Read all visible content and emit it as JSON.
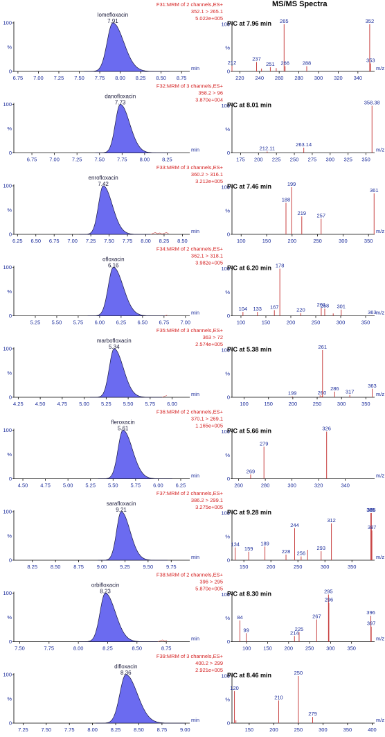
{
  "header": {
    "ms_title": "MS/MS Spectra"
  },
  "colors": {
    "peak_fill": "#6b6bf0",
    "peak_line": "#1a1a40",
    "info_text": "#d42020",
    "tick_text": "#1a2b9a",
    "spectrum_line": "#c84040"
  },
  "chart_data": [
    {
      "type": "area",
      "name": "lomefloxacin-chromatogram",
      "info": {
        "line1": "F31:MRM of 2 channels,ES+",
        "line2": "352.1 > 265.1",
        "line3": "5.022e+005"
      },
      "peak": {
        "label": "lomefloxacin",
        "rt_label": "7.91",
        "rt": 7.91,
        "width": 0.07
      },
      "xlim": [
        6.7,
        8.85
      ],
      "xticks": [
        "6.75",
        "7.00",
        "7.25",
        "7.50",
        "7.75",
        "8.00",
        "8.25",
        "8.50",
        "8.75"
      ],
      "yticks": [
        "100",
        "%",
        "0"
      ],
      "xlabel": "min"
    },
    {
      "type": "bar",
      "name": "lomefloxacin-spectrum",
      "title": "PIC at 7.96 min",
      "xlim": [
        212,
        357
      ],
      "xticks": [
        "220",
        "240",
        "260",
        "280",
        "300",
        "320",
        "340"
      ],
      "yticks": [
        "100",
        "%",
        "0"
      ],
      "xlabel": "m/z",
      "peaks": [
        {
          "mz": 212,
          "i": 12,
          "label": "212"
        },
        {
          "mz": 237,
          "i": 20,
          "label": "237"
        },
        {
          "mz": 242,
          "i": 6,
          "label": ""
        },
        {
          "mz": 251,
          "i": 9,
          "label": "251"
        },
        {
          "mz": 257,
          "i": 7,
          "label": ""
        },
        {
          "mz": 265,
          "i": 100,
          "label": "265"
        },
        {
          "mz": 266,
          "i": 11,
          "label": "266"
        },
        {
          "mz": 288,
          "i": 11,
          "label": "288"
        },
        {
          "mz": 352,
          "i": 100,
          "label": "352"
        },
        {
          "mz": 353,
          "i": 17,
          "label": "353"
        }
      ]
    },
    {
      "type": "area",
      "name": "danofloxacin-chromatogram",
      "info": {
        "line1": "F32:MRM of 3 channels,ES+",
        "line2": "358.2 > 96",
        "line3": "3.870e+004"
      },
      "peak": {
        "label": "danofloxacin",
        "rt_label": "7.73",
        "rt": 7.73,
        "width": 0.055
      },
      "xlim": [
        6.55,
        8.5
      ],
      "xticks": [
        "6.75",
        "7.00",
        "7.25",
        "7.50",
        "7.75",
        "8.00",
        "8.25"
      ],
      "yticks": [
        "100",
        "%",
        "0"
      ],
      "xlabel": "min"
    },
    {
      "type": "bar",
      "name": "danofloxacin-spectrum",
      "title": "PIC at 8.01  min",
      "xlim": [
        163,
        362
      ],
      "xticks": [
        "175",
        "200",
        "225",
        "250",
        "275",
        "300",
        "325",
        "350"
      ],
      "yticks": [
        "100",
        "%",
        "0"
      ],
      "xlabel": "m/z",
      "peaks": [
        {
          "mz": 212.11,
          "i": 3,
          "label": "212.11"
        },
        {
          "mz": 263.14,
          "i": 11,
          "label": "263.14"
        },
        {
          "mz": 358.38,
          "i": 100,
          "label": "358.38"
        }
      ]
    },
    {
      "type": "area",
      "name": "enrofloxacin-chromatogram",
      "info": {
        "line1": "F33:MRM of 3 channels,ES+",
        "line2": "360.2 > 316.1",
        "line3": "3.212e+005"
      },
      "peak": {
        "label": "enrofloxacin",
        "rt_label": "7.42",
        "rt": 7.42,
        "width": 0.065
      },
      "xlim": [
        6.2,
        8.6
      ],
      "xticks": [
        "6.25",
        "6.50",
        "6.75",
        "7.00",
        "7.25",
        "7.50",
        "7.75",
        "8.00",
        "8.25",
        "8.50"
      ],
      "yticks": [
        "100",
        "%",
        "0"
      ],
      "xlabel": "min"
    },
    {
      "type": "bar",
      "name": "enrofloxacin-spectrum",
      "title": "PIC at 7.46  min",
      "xlim": [
        82,
        362
      ],
      "xticks": [
        "100",
        "150",
        "200",
        "250",
        "300",
        "350"
      ],
      "yticks": [
        "100",
        "%",
        "0"
      ],
      "xlabel": "m/z",
      "peaks": [
        {
          "mz": 188,
          "i": 67,
          "label": "188"
        },
        {
          "mz": 199,
          "i": 100,
          "label": "199"
        },
        {
          "mz": 219,
          "i": 38,
          "label": "219"
        },
        {
          "mz": 257,
          "i": 33,
          "label": "257"
        },
        {
          "mz": 361,
          "i": 87,
          "label": "361"
        }
      ]
    },
    {
      "type": "area",
      "name": "ofloxacin-chromatogram",
      "info": {
        "line1": "F34:MRM of 2 channels,ES+",
        "line2": "362.1 > 318.1",
        "line3": "3.982e+005"
      },
      "peak": {
        "label": "ofloxacin",
        "rt_label": "6.16",
        "rt": 6.16,
        "width": 0.06
      },
      "xlim": [
        5.0,
        7.05
      ],
      "xticks": [
        "5.25",
        "5.50",
        "5.75",
        "6.00",
        "6.25",
        "6.50",
        "6.75",
        "7.00"
      ],
      "yticks": [
        "100",
        "%",
        "0"
      ],
      "xlabel": "min"
    },
    {
      "type": "bar",
      "name": "ofloxacin-spectrum",
      "title": "PIC at 6.20  min",
      "xlim": [
        82,
        368
      ],
      "xticks": [
        "100",
        "150",
        "200",
        "250",
        "300",
        "350"
      ],
      "yticks": [
        "100",
        "%",
        "0"
      ],
      "xlabel": "m/z",
      "peaks": [
        {
          "mz": 104,
          "i": 8,
          "label": "104"
        },
        {
          "mz": 133,
          "i": 8,
          "label": "133"
        },
        {
          "mz": 167,
          "i": 12,
          "label": "167"
        },
        {
          "mz": 178,
          "i": 100,
          "label": "178"
        },
        {
          "mz": 220,
          "i": 6,
          "label": "220"
        },
        {
          "mz": 261,
          "i": 17,
          "label": "261"
        },
        {
          "mz": 268,
          "i": 15,
          "label": "268"
        },
        {
          "mz": 285,
          "i": 5,
          "label": ""
        },
        {
          "mz": 301,
          "i": 13,
          "label": "301"
        },
        {
          "mz": 363,
          "i": 1,
          "label": "363"
        }
      ]
    },
    {
      "type": "area",
      "name": "marbofloxacin-chromatogram",
      "info": {
        "line1": "F35:MRM of 3 channels,ES+",
        "line2": "363 > 72",
        "line3": "2.574e+005"
      },
      "peak": {
        "label": "marbofloxacin",
        "rt_label": "5.34",
        "rt": 5.34,
        "width": 0.055
      },
      "xlim": [
        4.2,
        6.2
      ],
      "xticks": [
        "4.25",
        "4.50",
        "4.75",
        "5.00",
        "5.25",
        "5.50",
        "5.75",
        "6.00"
      ],
      "yticks": [
        "100",
        "%",
        "0"
      ],
      "xlabel": "min"
    },
    {
      "type": "bar",
      "name": "marbofloxacin-spectrum",
      "title": "PIC at 5.38  min",
      "xlim": [
        75,
        368
      ],
      "xticks": [
        "100",
        "150",
        "200",
        "250",
        "300",
        "350"
      ],
      "yticks": [
        "100",
        "%",
        "0"
      ],
      "xlabel": "m/z",
      "peaks": [
        {
          "mz": 199,
          "i": 2,
          "label": "199"
        },
        {
          "mz": 256,
          "i": 4,
          "label": ""
        },
        {
          "mz": 260,
          "i": 3,
          "label": "260"
        },
        {
          "mz": 261,
          "i": 100,
          "label": "261"
        },
        {
          "mz": 286,
          "i": 12,
          "label": "286"
        },
        {
          "mz": 317,
          "i": 5,
          "label": "317"
        },
        {
          "mz": 363,
          "i": 18,
          "label": "363"
        }
      ]
    },
    {
      "type": "area",
      "name": "fleroxacin-chromatogram",
      "info": {
        "line1": "F36:MRM of 2 channels,ES+",
        "line2": "370.1 > 269.1",
        "line3": "1.165e+005"
      },
      "peak": {
        "label": "fleroxacin",
        "rt_label": "5.61",
        "rt": 5.61,
        "width": 0.055
      },
      "xlim": [
        4.4,
        6.35
      ],
      "xticks": [
        "4.50",
        "4.75",
        "5.00",
        "5.25",
        "5.50",
        "5.75",
        "6.00",
        "6.25"
      ],
      "yticks": [
        "100",
        "%",
        "0"
      ],
      "xlabel": "min"
    },
    {
      "type": "bar",
      "name": "fleroxacin-spectrum",
      "title": "PIC at 5.66  min",
      "xlim": [
        255,
        362
      ],
      "xticks": [
        "260",
        "280",
        "300",
        "320",
        "340"
      ],
      "yticks": [
        "100",
        "%",
        "0"
      ],
      "xlabel": "m/z",
      "peaks": [
        {
          "mz": 269,
          "i": 9,
          "label": "269"
        },
        {
          "mz": 279,
          "i": 68,
          "label": "279"
        },
        {
          "mz": 326,
          "i": 100,
          "label": "326"
        }
      ]
    },
    {
      "type": "area",
      "name": "sarafloxacin-chromatogram",
      "info": {
        "line1": "F37:MRM of 2 channels,ES+",
        "line2": "386.2 > 299.1",
        "line3": "3.275e+005"
      },
      "peak": {
        "label": "sarafloxacin",
        "rt_label": "9.21",
        "rt": 9.21,
        "width": 0.05
      },
      "xlim": [
        8.05,
        9.95
      ],
      "xticks": [
        "8.25",
        "8.50",
        "8.75",
        "9.00",
        "9.25",
        "9.50",
        "9.75"
      ],
      "yticks": [
        "100",
        "%",
        "0"
      ],
      "xlabel": "min"
    },
    {
      "type": "bar",
      "name": "sarafloxacin-spectrum",
      "title": "PIC at 9.28  min",
      "xlim": [
        128,
        392
      ],
      "xticks": [
        "150",
        "200",
        "250",
        "300",
        "350"
      ],
      "yticks": [
        "100",
        "%",
        "0"
      ],
      "xlabel": "m/z",
      "peaks": [
        {
          "mz": 134,
          "i": 27,
          "label": "134"
        },
        {
          "mz": 159,
          "i": 18,
          "label": "159"
        },
        {
          "mz": 189,
          "i": 29,
          "label": "189"
        },
        {
          "mz": 228,
          "i": 12,
          "label": "228"
        },
        {
          "mz": 244,
          "i": 68,
          "label": "244"
        },
        {
          "mz": 256,
          "i": 8,
          "label": "256"
        },
        {
          "mz": 268,
          "i": 22,
          "label": ""
        },
        {
          "mz": 293,
          "i": 19,
          "label": "293"
        },
        {
          "mz": 312,
          "i": 78,
          "label": "312"
        },
        {
          "mz": 385,
          "i": 100,
          "label": "385"
        },
        {
          "mz": 386,
          "i": 100,
          "label": "386"
        },
        {
          "mz": 387,
          "i": 63,
          "label": "387"
        }
      ]
    },
    {
      "type": "area",
      "name": "orbifloxacin-chromatogram",
      "info": {
        "line1": "F38:MRM of 2 channels,ES+",
        "line2": "396 > 295",
        "line3": "5.870e+005"
      },
      "peak": {
        "label": "orbifloxacin",
        "rt_label": "8.23",
        "rt": 8.23,
        "width": 0.045
      },
      "xlim": [
        7.45,
        8.95
      ],
      "xticks": [
        "7.50",
        "7.75",
        "8.00",
        "8.25",
        "8.50",
        "8.75"
      ],
      "yticks": [
        "100",
        "%",
        "0"
      ],
      "xlabel": "min"
    },
    {
      "type": "bar",
      "name": "orbifloxacin-spectrum",
      "title": "PIC at 8.30  min",
      "xlim": [
        65,
        405
      ],
      "xticks": [
        "100",
        "150",
        "200",
        "250",
        "300",
        "350"
      ],
      "yticks": [
        "100",
        "%",
        "0"
      ],
      "xlabel": "m/z",
      "peaks": [
        {
          "mz": 84,
          "i": 45,
          "label": "84"
        },
        {
          "mz": 99,
          "i": 18,
          "label": "99"
        },
        {
          "mz": 214,
          "i": 12,
          "label": "214"
        },
        {
          "mz": 225,
          "i": 20,
          "label": "225"
        },
        {
          "mz": 267,
          "i": 47,
          "label": "267"
        },
        {
          "mz": 295,
          "i": 100,
          "label": "295"
        },
        {
          "mz": 296,
          "i": 82,
          "label": "296"
        },
        {
          "mz": 396,
          "i": 55,
          "label": "396"
        },
        {
          "mz": 397,
          "i": 32,
          "label": "397"
        }
      ]
    },
    {
      "type": "area",
      "name": "difloxacin-chromatogram",
      "info": {
        "line1": "F39:MRM of 3 channels,ES+",
        "line2": "400.2 > 299",
        "line3": "2.921e+005"
      },
      "peak": {
        "label": "difloxacin",
        "rt_label": "8.36",
        "rt": 8.36,
        "width": 0.065
      },
      "xlim": [
        7.15,
        9.05
      ],
      "xticks": [
        "7.25",
        "7.50",
        "7.75",
        "8.00",
        "8.25",
        "8.50",
        "8.75",
        "9.00"
      ],
      "yticks": [
        "100",
        "%",
        "0"
      ],
      "xlabel": "min"
    },
    {
      "type": "bar",
      "name": "difloxacin-spectrum",
      "title": "PIC at 8.46  min",
      "xlim": [
        115,
        405
      ],
      "xticks": [
        "150",
        "200",
        "250",
        "300",
        "350",
        "400"
      ],
      "yticks": [
        "100",
        "%",
        "0"
      ],
      "xlabel": "m/z",
      "peaks": [
        {
          "mz": 120,
          "i": 68,
          "label": "120"
        },
        {
          "mz": 123,
          "i": 6,
          "label": ""
        },
        {
          "mz": 210,
          "i": 48,
          "label": "210"
        },
        {
          "mz": 250,
          "i": 100,
          "label": "250"
        },
        {
          "mz": 279,
          "i": 13,
          "label": "279"
        }
      ]
    }
  ]
}
